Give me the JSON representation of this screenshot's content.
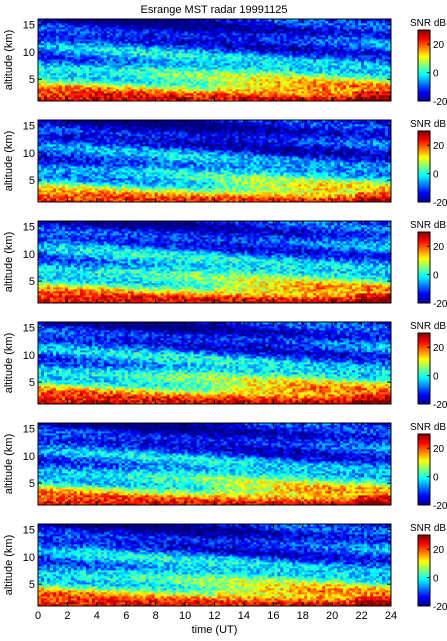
{
  "figure": {
    "title": "Esrange MST radar 19991125"
  },
  "chart_data": [
    {
      "type": "heatmap",
      "panel": 1,
      "title": "Esrange MST radar 19991125",
      "xlabel": "time (UT)",
      "ylabel": "altitude (km)",
      "xlim": [
        0,
        24
      ],
      "ylim": [
        1,
        16
      ],
      "x_ticks": [
        0,
        2,
        4,
        6,
        8,
        10,
        12,
        14,
        16,
        18,
        20,
        22,
        24
      ],
      "y_ticks": [
        5,
        10,
        15
      ],
      "colorbar": {
        "label": "SNR dB",
        "range": [
          -20,
          30
        ],
        "ticks": [
          -20,
          0,
          20
        ],
        "colormap": "jet"
      },
      "profile": {
        "description_values_snr_db_by_altitude_km": [
          [
            1.5,
            25
          ],
          [
            3,
            15
          ],
          [
            5,
            5
          ],
          [
            8,
            -5
          ],
          [
            12,
            -12
          ],
          [
            16,
            -17
          ]
        ]
      }
    },
    {
      "type": "heatmap",
      "panel": 2,
      "ylabel": "altitude (km)",
      "xlim": [
        0,
        24
      ],
      "ylim": [
        1,
        16
      ],
      "y_ticks": [
        5,
        10,
        15
      ],
      "colorbar": {
        "label": "SNR dB",
        "range": [
          -20,
          30
        ],
        "ticks": [
          -20,
          0,
          20
        ],
        "colormap": "jet"
      },
      "profile": {
        "description_values_snr_db_by_altitude_km": [
          [
            1.5,
            22
          ],
          [
            3,
            10
          ],
          [
            5,
            0
          ],
          [
            8,
            -8
          ],
          [
            12,
            -13
          ],
          [
            16,
            -18
          ]
        ]
      }
    },
    {
      "type": "heatmap",
      "panel": 3,
      "ylabel": "altitude (km)",
      "xlim": [
        0,
        24
      ],
      "ylim": [
        1,
        16
      ],
      "y_ticks": [
        5,
        10,
        15
      ],
      "colorbar": {
        "label": "SNR dB",
        "range": [
          -20,
          30
        ],
        "ticks": [
          -20,
          0,
          20
        ],
        "colormap": "jet"
      },
      "profile": {
        "description_values_snr_db_by_altitude_km": [
          [
            1.5,
            25
          ],
          [
            3,
            14
          ],
          [
            5,
            4
          ],
          [
            8,
            -4
          ],
          [
            12,
            -10
          ],
          [
            16,
            -16
          ]
        ]
      }
    },
    {
      "type": "heatmap",
      "panel": 4,
      "ylabel": "altitude (km)",
      "xlim": [
        0,
        24
      ],
      "ylim": [
        1,
        16
      ],
      "y_ticks": [
        5,
        10,
        15
      ],
      "colorbar": {
        "label": "SNR dB",
        "range": [
          -20,
          30
        ],
        "ticks": [
          -20,
          0,
          20
        ],
        "colormap": "jet"
      },
      "profile": {
        "description_values_snr_db_by_altitude_km": [
          [
            1.5,
            25
          ],
          [
            3,
            15
          ],
          [
            5,
            5
          ],
          [
            8,
            -5
          ],
          [
            12,
            -11
          ],
          [
            16,
            -17
          ]
        ]
      }
    },
    {
      "type": "heatmap",
      "panel": 5,
      "ylabel": "altitude (km)",
      "xlim": [
        0,
        24
      ],
      "ylim": [
        1,
        16
      ],
      "y_ticks": [
        5,
        10,
        15
      ],
      "colorbar": {
        "label": "SNR dB",
        "range": [
          -20,
          30
        ],
        "ticks": [
          -20,
          0,
          20
        ],
        "colormap": "jet"
      },
      "profile": {
        "description_values_snr_db_by_altitude_km": [
          [
            1.5,
            24
          ],
          [
            3,
            13
          ],
          [
            5,
            3
          ],
          [
            8,
            -6
          ],
          [
            12,
            -12
          ],
          [
            16,
            -17
          ]
        ]
      }
    },
    {
      "type": "heatmap",
      "panel": 6,
      "xlabel": "time (UT)",
      "ylabel": "altitude (km)",
      "xlim": [
        0,
        24
      ],
      "ylim": [
        1,
        16
      ],
      "x_ticks": [
        0,
        2,
        4,
        6,
        8,
        10,
        12,
        14,
        16,
        18,
        20,
        22,
        24
      ],
      "y_ticks": [
        5,
        10,
        15
      ],
      "colorbar": {
        "label": "SNR dB",
        "range": [
          -20,
          30
        ],
        "ticks": [
          -20,
          0,
          20
        ],
        "colormap": "jet"
      },
      "profile": {
        "description_values_snr_db_by_altitude_km": [
          [
            1.5,
            24
          ],
          [
            3,
            14
          ],
          [
            5,
            4
          ],
          [
            8,
            -5
          ],
          [
            12,
            -11
          ],
          [
            16,
            -17
          ]
        ]
      }
    }
  ]
}
